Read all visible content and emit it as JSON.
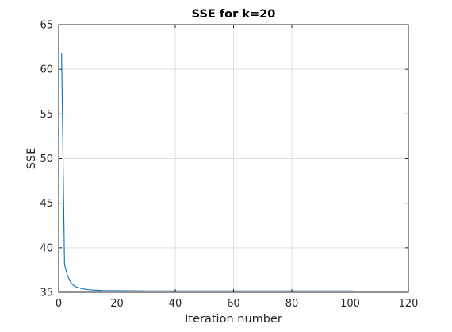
{
  "chart_data": {
    "type": "line",
    "title": "SSE for k=20",
    "xlabel": "Iteration number",
    "ylabel": "SSE",
    "xlim": [
      0,
      120
    ],
    "ylim": [
      35,
      65
    ],
    "xticks": [
      0,
      20,
      40,
      60,
      80,
      100,
      120
    ],
    "yticks": [
      35,
      40,
      45,
      50,
      55,
      60,
      65
    ],
    "grid": true,
    "series": [
      {
        "color": "#0072bd",
        "x": [
          1,
          2,
          3,
          4,
          5,
          6,
          7,
          8,
          9,
          10,
          12,
          15,
          20,
          30,
          40,
          50,
          60,
          70,
          80,
          90,
          100,
          101
        ],
        "y": [
          61.8,
          38.1,
          36.9,
          36.2,
          35.8,
          35.6,
          35.5,
          35.4,
          35.35,
          35.3,
          35.25,
          35.2,
          35.18,
          35.15,
          35.15,
          35.15,
          35.15,
          35.15,
          35.15,
          35.15,
          35.15,
          35.15
        ]
      }
    ]
  }
}
